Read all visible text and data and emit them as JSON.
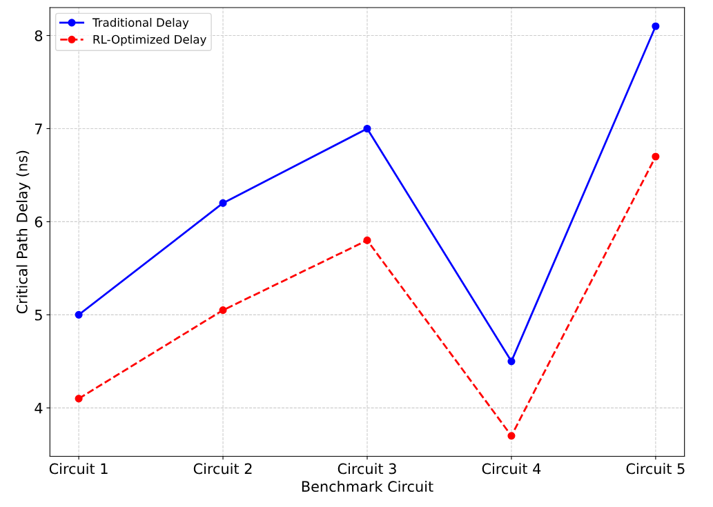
{
  "chart_data": {
    "type": "line",
    "xlabel": "Benchmark Circuit",
    "ylabel": "Critical Path Delay (ns)",
    "categories": [
      "Circuit 1",
      "Circuit 2",
      "Circuit 3",
      "Circuit 4",
      "Circuit 5"
    ],
    "series": [
      {
        "name": "Traditional Delay",
        "color": "#0000ff",
        "values": [
          5,
          6.2,
          7,
          4.5,
          8.1
        ],
        "line_style": "solid"
      },
      {
        "name": "RL-Optimized Delay",
        "color": "#ff0000",
        "values": [
          4.1,
          5.05,
          5.8,
          3.7,
          6.7
        ],
        "line_style": "dashed"
      }
    ],
    "ylim": [
      3.48,
      8.3
    ],
    "yticks": [
      4,
      5,
      6,
      7,
      8
    ],
    "grid": true,
    "legend": "top left",
    "marker": "circle"
  }
}
